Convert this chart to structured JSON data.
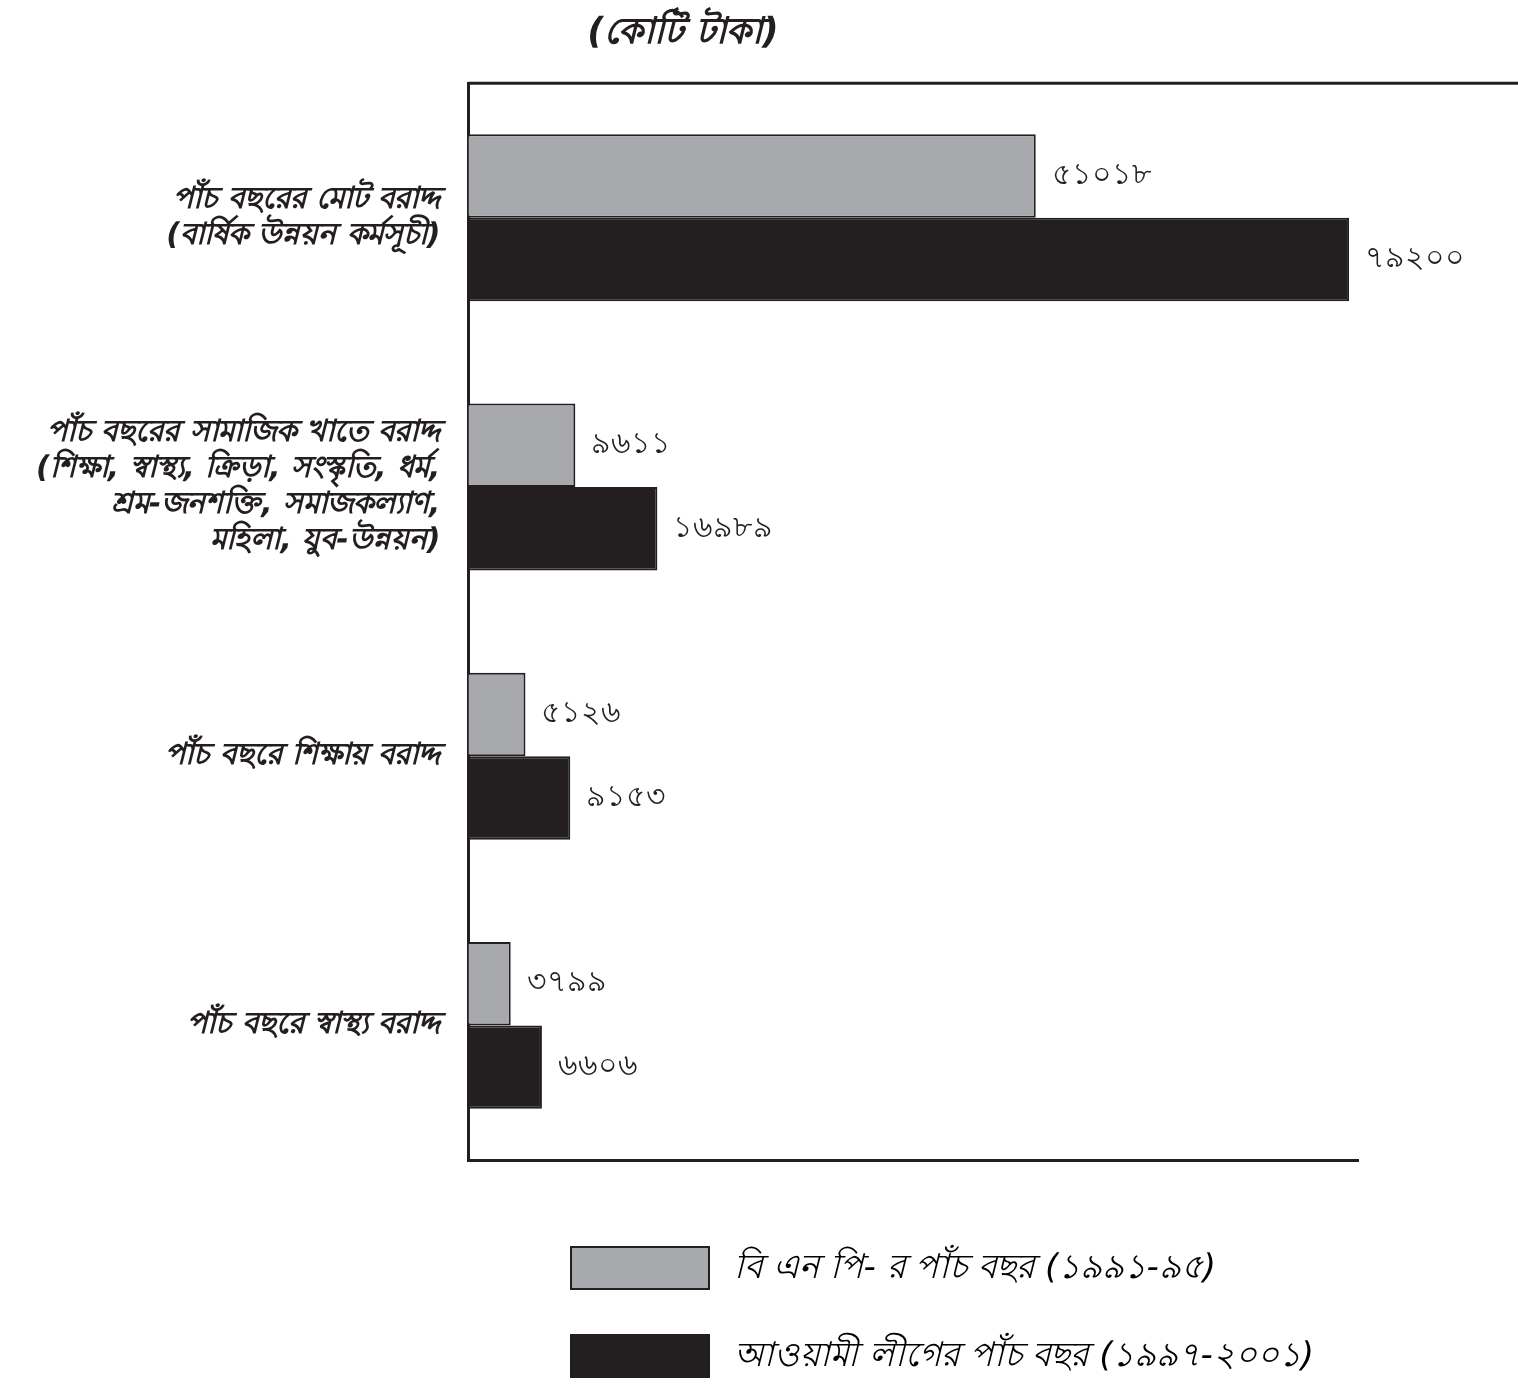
{
  "chart_data": {
    "type": "bar",
    "orientation": "horizontal",
    "title": "(কোটি টাকা)",
    "categories": [
      "পাঁচ বছরের মোট বরাদ্দ\n(বার্ষিক উন্নয়ন কর্মসূচী)",
      "পাঁচ বছরের সামাজিক খাতে বরাদ্দ\n(শিক্ষা, স্বাস্থ্য, ক্রিড়া, সংস্কৃতি, ধর্ম,\nশ্রম-জনশক্তি, সমাজকল্যাণ,\nমহিলা, যুব-উন্নয়ন)",
      "পাঁচ বছরে শিক্ষায় বরাদ্দ",
      "পাঁচ বছরে স্বাস্থ্য বরাদ্দ"
    ],
    "series": [
      {
        "name": "বি এন পি- র পাঁচ বছর (১৯৯১-৯৫)",
        "color": "#a7a9ac",
        "values": [
          51018,
          9611,
          5126,
          3799
        ],
        "value_labels": [
          "৫১০১৮",
          "৯৬১১",
          "৫১২৬",
          "৩৭৯৯"
        ]
      },
      {
        "name": "আওয়ামী  লীগের পাঁচ বছর (১৯৯৭-২০০১)",
        "color": "#231f20",
        "values": [
          79200,
          16989,
          9153,
          6606
        ],
        "value_labels": [
          "৭৯২০০",
          "১৬৯৮৯",
          "৯১৫৩",
          "৬৬০৬"
        ]
      }
    ],
    "legend": "bottom",
    "grid": false,
    "tick_labels": "y"
  }
}
